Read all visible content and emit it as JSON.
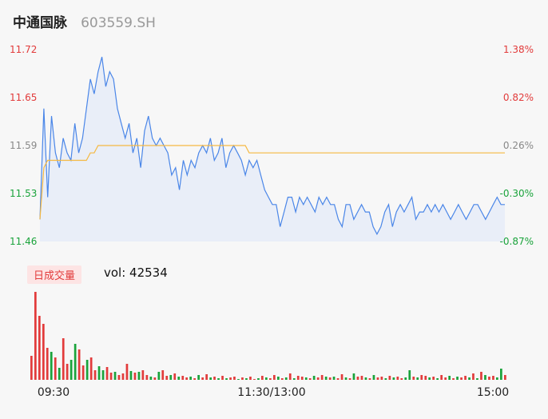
{
  "header": {
    "name": "中通国脉",
    "code": "603559.SH"
  },
  "volume_legend": {
    "badge": "日成交量",
    "label": "vol: 42534"
  },
  "colors": {
    "price_line": "#4a86e8",
    "avg_line": "#f5b942",
    "area_fill": "#e9eef8",
    "up": "#e23b3b",
    "down": "#1aa33b",
    "neutral_label": "#888888"
  },
  "chart_data": [
    {
      "type": "line",
      "title": "",
      "y_left_ticks": [
        "11.72",
        "11.65",
        "11.59",
        "11.53",
        "11.46"
      ],
      "y_right_ticks": [
        "1.38%",
        "0.82%",
        "0.26%",
        "-0.30%",
        "-0.87%"
      ],
      "ylim": [
        11.46,
        11.72
      ],
      "x": [
        0,
        2,
        4,
        6,
        8,
        10,
        12,
        14,
        16,
        18,
        20,
        22,
        24,
        26,
        28,
        30,
        32,
        34,
        36,
        38,
        40,
        42,
        44,
        46,
        48,
        50,
        52,
        54,
        56,
        58,
        60,
        62,
        64,
        66,
        68,
        70,
        72,
        74,
        76,
        78,
        80,
        82,
        84,
        86,
        88,
        90,
        92,
        94,
        96,
        98,
        100,
        102,
        104,
        106,
        108,
        110,
        112,
        114,
        116,
        118,
        120,
        122,
        124,
        126,
        128,
        130,
        132,
        134,
        136,
        138,
        140,
        142,
        144,
        146,
        148,
        150,
        152,
        154,
        156,
        158,
        160,
        162,
        164,
        166,
        168,
        170,
        172,
        174,
        176,
        178,
        180,
        182,
        184,
        186,
        188,
        190,
        192,
        194,
        196,
        198,
        200,
        202,
        204,
        206,
        208,
        210,
        212,
        214,
        216,
        218,
        220,
        222,
        224,
        226,
        228,
        230,
        232,
        234,
        236,
        238,
        240
      ],
      "series": [
        {
          "values": [
            11.49,
            11.64,
            11.52,
            11.63,
            11.58,
            11.56,
            11.6,
            11.58,
            11.57,
            11.62,
            11.58,
            11.6,
            11.64,
            11.68,
            11.66,
            11.69,
            11.71,
            11.67,
            11.69,
            11.68,
            11.64,
            11.62,
            11.6,
            11.62,
            11.58,
            11.6,
            11.56,
            11.61,
            11.63,
            11.6,
            11.59,
            11.6,
            11.59,
            11.58,
            11.55,
            11.56,
            11.53,
            11.57,
            11.55,
            11.57,
            11.56,
            11.58,
            11.59,
            11.58,
            11.6,
            11.57,
            11.58,
            11.6,
            11.56,
            11.58,
            11.59,
            11.58,
            11.57,
            11.55,
            11.57,
            11.56,
            11.57,
            11.55,
            11.53,
            11.52,
            11.51,
            11.51,
            11.48,
            11.5,
            11.52,
            11.52,
            11.5,
            11.52,
            11.51,
            11.52,
            11.51,
            11.5,
            11.52,
            11.51,
            11.52,
            11.51,
            11.51,
            11.49,
            11.48,
            11.51,
            11.51,
            11.49,
            11.5,
            11.51,
            11.5,
            11.5,
            11.48,
            11.47,
            11.48,
            11.5,
            11.51,
            11.48,
            11.5,
            11.51,
            11.5,
            11.51,
            11.52,
            11.49,
            11.5,
            11.5,
            11.51,
            11.5,
            11.51,
            11.5,
            11.51,
            11.5,
            11.49,
            11.5,
            11.51,
            11.5,
            11.49,
            11.5,
            11.51,
            11.51,
            11.5,
            11.49,
            11.5,
            11.51,
            11.52,
            11.51,
            11.51
          ]
        },
        {
          "values": [
            11.49,
            11.56,
            11.57,
            11.57,
            11.57,
            11.57,
            11.57,
            11.57,
            11.57,
            11.57,
            11.57,
            11.57,
            11.57,
            11.58,
            11.58,
            11.59,
            11.59,
            11.59,
            11.59,
            11.59,
            11.59,
            11.59,
            11.59,
            11.59,
            11.59,
            11.59,
            11.59,
            11.59,
            11.59,
            11.59,
            11.59,
            11.59,
            11.59,
            11.59,
            11.59,
            11.59,
            11.59,
            11.59,
            11.59,
            11.59,
            11.59,
            11.59,
            11.59,
            11.59,
            11.59,
            11.59,
            11.59,
            11.59,
            11.59,
            11.59,
            11.59,
            11.59,
            11.59,
            11.59,
            11.58,
            11.58,
            11.58,
            11.58,
            11.58,
            11.58,
            11.58,
            11.58,
            11.58,
            11.58,
            11.58,
            11.58,
            11.58,
            11.58,
            11.58,
            11.58,
            11.58,
            11.58,
            11.58,
            11.58,
            11.58,
            11.58,
            11.58,
            11.58,
            11.58,
            11.58,
            11.58,
            11.58,
            11.58,
            11.58,
            11.58,
            11.58,
            11.58,
            11.58,
            11.58,
            11.58,
            11.58,
            11.58,
            11.58,
            11.58,
            11.58,
            11.58,
            11.58,
            11.58,
            11.58,
            11.58,
            11.58,
            11.58,
            11.58,
            11.58,
            11.58,
            11.58,
            11.58,
            11.58,
            11.58,
            11.58,
            11.58,
            11.58,
            11.58,
            11.58,
            11.58,
            11.58,
            11.58,
            11.58,
            11.58,
            11.58,
            11.58
          ]
        }
      ]
    },
    {
      "type": "bar",
      "title": "",
      "x_ticks": [
        "09:30",
        "11:30/13:00",
        "15:00"
      ],
      "values": [
        30,
        110,
        80,
        70,
        40,
        35,
        28,
        15,
        52,
        20,
        25,
        45,
        38,
        18,
        25,
        28,
        12,
        17,
        12,
        16,
        9,
        10,
        6,
        8,
        20,
        11,
        9,
        10,
        12,
        6,
        4,
        3,
        10,
        12,
        5,
        6,
        8,
        4,
        5,
        3,
        4,
        2,
        6,
        3,
        7,
        3,
        4,
        2,
        5,
        2,
        3,
        4,
        1,
        3,
        2,
        4,
        1,
        2,
        5,
        3,
        2,
        6,
        4,
        2,
        3,
        8,
        2,
        5,
        4,
        3,
        2,
        5,
        3,
        6,
        4,
        3,
        4,
        2,
        7,
        3,
        2,
        8,
        4,
        5,
        3,
        2,
        6,
        3,
        4,
        2,
        5,
        3,
        4,
        2,
        3,
        12,
        4,
        3,
        6,
        5,
        3,
        4,
        2,
        6,
        3,
        5,
        2,
        4,
        3,
        5,
        3,
        8,
        2,
        10,
        6,
        4,
        5,
        3,
        14,
        6
      ],
      "up": [
        1,
        1,
        1,
        1,
        1,
        0,
        1,
        0,
        1,
        1,
        0,
        0,
        1,
        1,
        0,
        1,
        1,
        0,
        0,
        1,
        1,
        0,
        1,
        1,
        1,
        0,
        1,
        0,
        1,
        1,
        0,
        1,
        0,
        1,
        1,
        0,
        1,
        0,
        1,
        1,
        0,
        1,
        0,
        1,
        1,
        0,
        1,
        0,
        1,
        0,
        1,
        1,
        0,
        1,
        0,
        1,
        1,
        0,
        1,
        0,
        1,
        1,
        0,
        1,
        0,
        1,
        0,
        1,
        1,
        0,
        1,
        0,
        1,
        1,
        0,
        1,
        0,
        1,
        1,
        0,
        1,
        0,
        1,
        1,
        0,
        1,
        0,
        1,
        1,
        0,
        1,
        0,
        1,
        1,
        0,
        0,
        1,
        0,
        1,
        1,
        0,
        1,
        0,
        1,
        1,
        0,
        1,
        0,
        1,
        1,
        0,
        1,
        0,
        1,
        0,
        1,
        1,
        0,
        0,
        1
      ]
    }
  ]
}
